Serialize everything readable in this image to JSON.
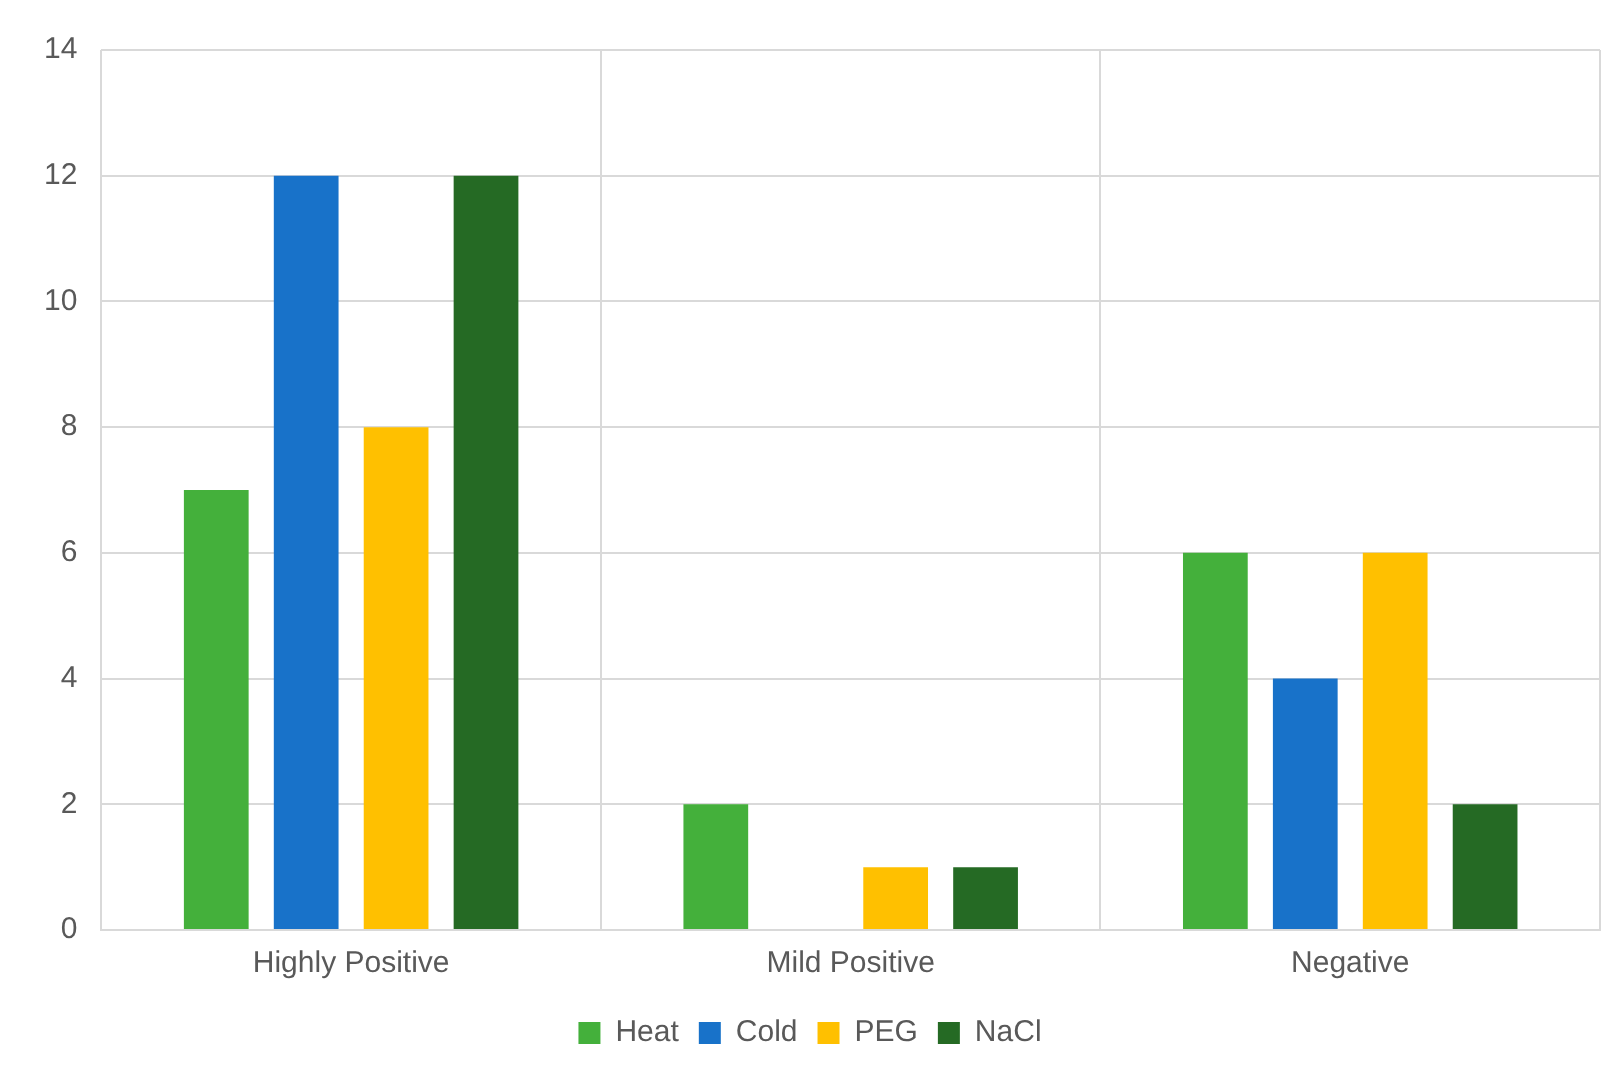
{
  "chart_data": {
    "type": "bar",
    "categories": [
      "Highly Positive",
      "Mild Positive",
      "Negative"
    ],
    "series": [
      {
        "name": "Heat",
        "color": "#44b03b",
        "values": [
          7,
          2,
          6
        ]
      },
      {
        "name": "Cold",
        "color": "#1872c9",
        "values": [
          12,
          0,
          4
        ]
      },
      {
        "name": "PEG",
        "color": "#ffc000",
        "values": [
          8,
          1,
          6
        ]
      },
      {
        "name": "NaCl",
        "color": "#256a24",
        "values": [
          12,
          1,
          2
        ]
      }
    ],
    "ylim": [
      0,
      14
    ],
    "yticks": [
      0,
      2,
      4,
      6,
      8,
      10,
      12,
      14
    ],
    "grid": true,
    "legend": "bottom"
  }
}
